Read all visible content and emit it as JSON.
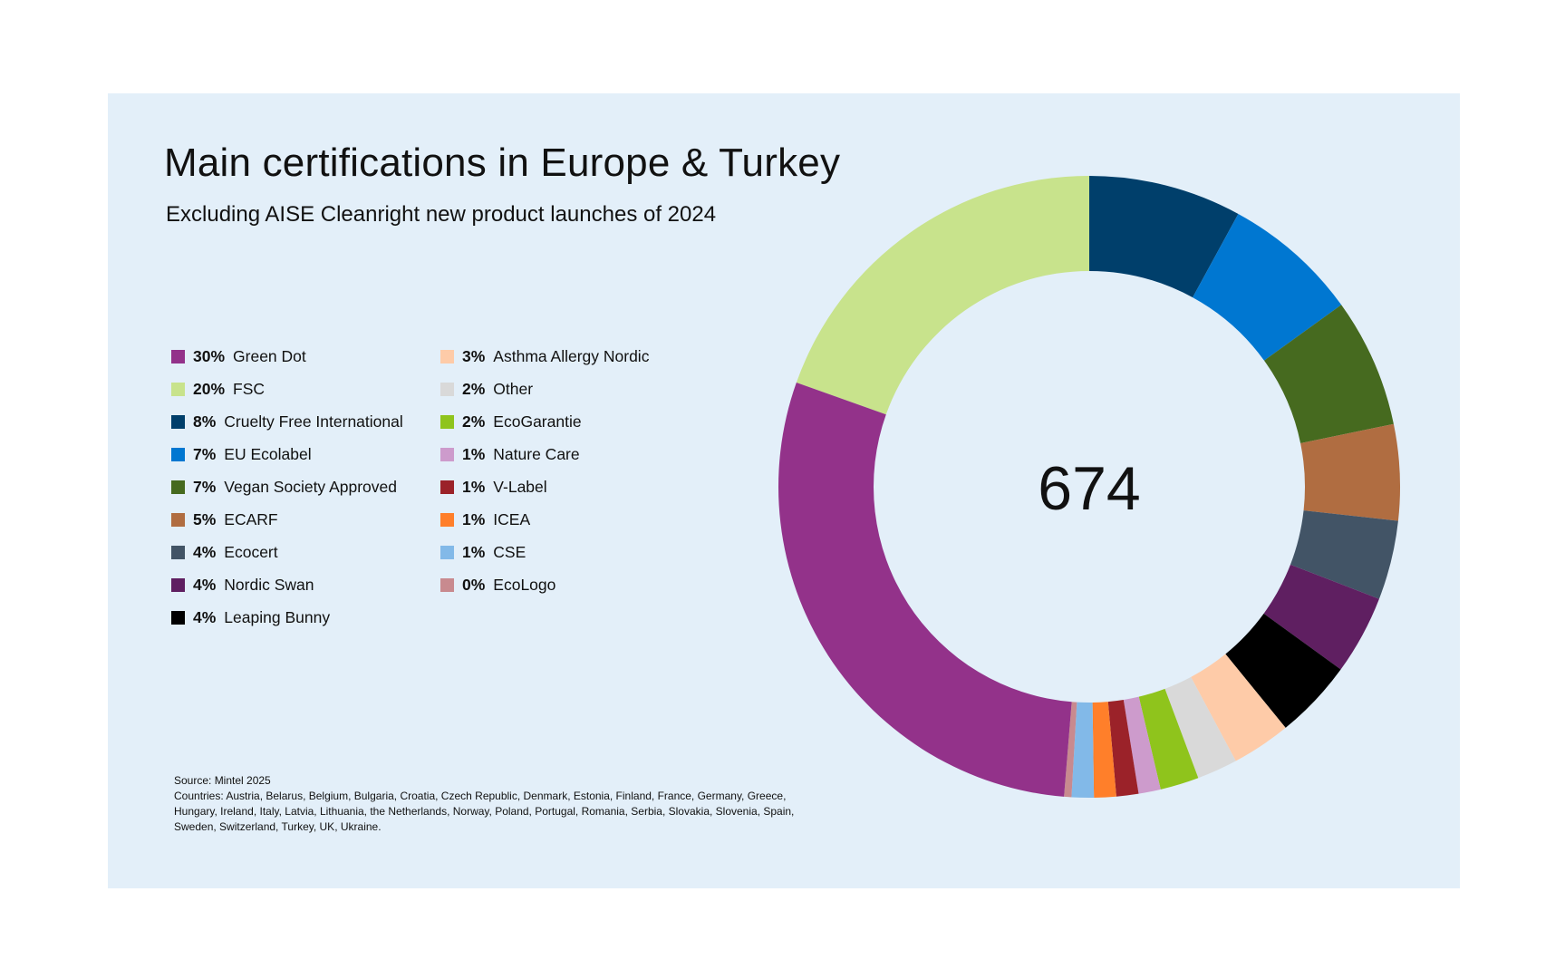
{
  "chart_data": {
    "type": "pie",
    "title": "Main certifications in Europe & Turkey",
    "subtitle": "Excluding AISE Cleanright new product launches of 2024",
    "center_label": "674",
    "legend_placement": "left",
    "slices": [
      {
        "label": "Green Dot",
        "pct_label": "30%",
        "value": 30.4,
        "color": "#93328a"
      },
      {
        "label": "FSC",
        "pct_label": "20%",
        "value": 20.4,
        "color": "#c8e38c"
      },
      {
        "label": "Cruelty Free International",
        "pct_label": "8%",
        "value": 8.3,
        "color": "#003f6b"
      },
      {
        "label": "EU Ecolabel",
        "pct_label": "7%",
        "value": 7.4,
        "color": "#0077d1"
      },
      {
        "label": "Vegan Society Approved",
        "pct_label": "7%",
        "value": 7.0,
        "color": "#466a1f"
      },
      {
        "label": "ECARF",
        "pct_label": "5%",
        "value": 5.2,
        "color": "#b06d41"
      },
      {
        "label": "Ecocert",
        "pct_label": "4%",
        "value": 4.3,
        "color": "#425466"
      },
      {
        "label": "Nordic Swan",
        "pct_label": "4%",
        "value": 4.3,
        "color": "#5f1f61"
      },
      {
        "label": "Leaping Bunny",
        "pct_label": "4%",
        "value": 4.3,
        "color": "#000000"
      },
      {
        "label": "Asthma Allergy Nordic",
        "pct_label": "3%",
        "value": 3.2,
        "color": "#fecba8"
      },
      {
        "label": "Other",
        "pct_label": "2%",
        "value": 2.2,
        "color": "#d9d9d9"
      },
      {
        "label": "EcoGarantie",
        "pct_label": "2%",
        "value": 2.1,
        "color": "#8fc41c"
      },
      {
        "label": "Nature Care",
        "pct_label": "1%",
        "value": 1.2,
        "color": "#cd9bcc"
      },
      {
        "label": "V-Label",
        "pct_label": "1%",
        "value": 1.2,
        "color": "#9b2229"
      },
      {
        "label": "ICEA",
        "pct_label": "1%",
        "value": 1.2,
        "color": "#ff7f2a"
      },
      {
        "label": "CSE",
        "pct_label": "1%",
        "value": 1.2,
        "color": "#82b9e8"
      },
      {
        "label": "EcoLogo",
        "pct_label": "0%",
        "value": 0.4,
        "color": "#c88a8f"
      }
    ]
  },
  "source": {
    "line1": "Source: Mintel 2025",
    "line2": "Countries: Austria, Belarus, Belgium, Bulgaria, Croatia, Czech Republic, Denmark, Estonia, Finland, France, Germany, Greece, Hungary, Ireland, Italy, Latvia, Lithuania, the Netherlands, Norway, Poland, Portugal, Romania, Serbia, Slovakia, Slovenia, Spain, Sweden, Switzerland, Turkey, UK, Ukraine."
  }
}
